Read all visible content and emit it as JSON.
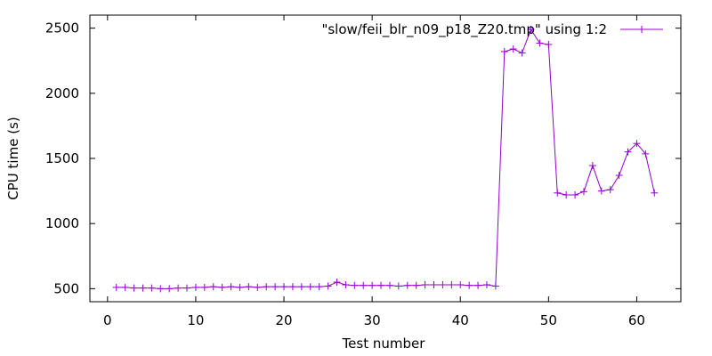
{
  "chart_data": {
    "type": "line",
    "xlabel": "Test number",
    "ylabel": "CPU time (s)",
    "xlim": [
      -2,
      65
    ],
    "ylim": [
      400,
      2600
    ],
    "xticks": [
      0,
      10,
      20,
      30,
      40,
      50,
      60
    ],
    "yticks": [
      500,
      1000,
      1500,
      2000,
      2500
    ],
    "xtick_labels": [
      "0",
      "10",
      "20",
      "30",
      "40",
      "50",
      "60"
    ],
    "ytick_labels": [
      "500",
      "1000",
      "1500",
      "2000",
      "2500"
    ],
    "grid": false,
    "legend_position": "top-right",
    "series": [
      {
        "name": "\"slow/feii_blr_n09_p18_Z20.tmp\" using 1:2",
        "color": "#9400d3",
        "marker": "plus",
        "x": [
          1,
          2,
          3,
          4,
          5,
          6,
          7,
          8,
          9,
          10,
          11,
          12,
          13,
          14,
          15,
          16,
          17,
          18,
          19,
          20,
          21,
          22,
          23,
          24,
          25,
          26,
          27,
          28,
          29,
          30,
          31,
          32,
          33,
          34,
          35,
          36,
          37,
          38,
          39,
          40,
          41,
          42,
          43,
          44,
          45,
          46,
          47,
          48,
          49,
          50,
          51,
          52,
          53,
          54,
          55,
          56,
          57,
          58,
          59,
          60,
          61,
          62
        ],
        "y": [
          510,
          510,
          505,
          505,
          505,
          500,
          500,
          505,
          505,
          510,
          510,
          515,
          510,
          515,
          510,
          515,
          510,
          515,
          515,
          515,
          515,
          515,
          515,
          515,
          520,
          550,
          530,
          525,
          525,
          525,
          525,
          525,
          520,
          525,
          525,
          530,
          530,
          530,
          530,
          530,
          525,
          525,
          530,
          520,
          2320,
          2340,
          2310,
          2490,
          2385,
          2375,
          1235,
          1220,
          1220,
          1245,
          1445,
          1250,
          1260,
          1370,
          1550,
          1615,
          1535,
          1235
        ]
      }
    ]
  }
}
